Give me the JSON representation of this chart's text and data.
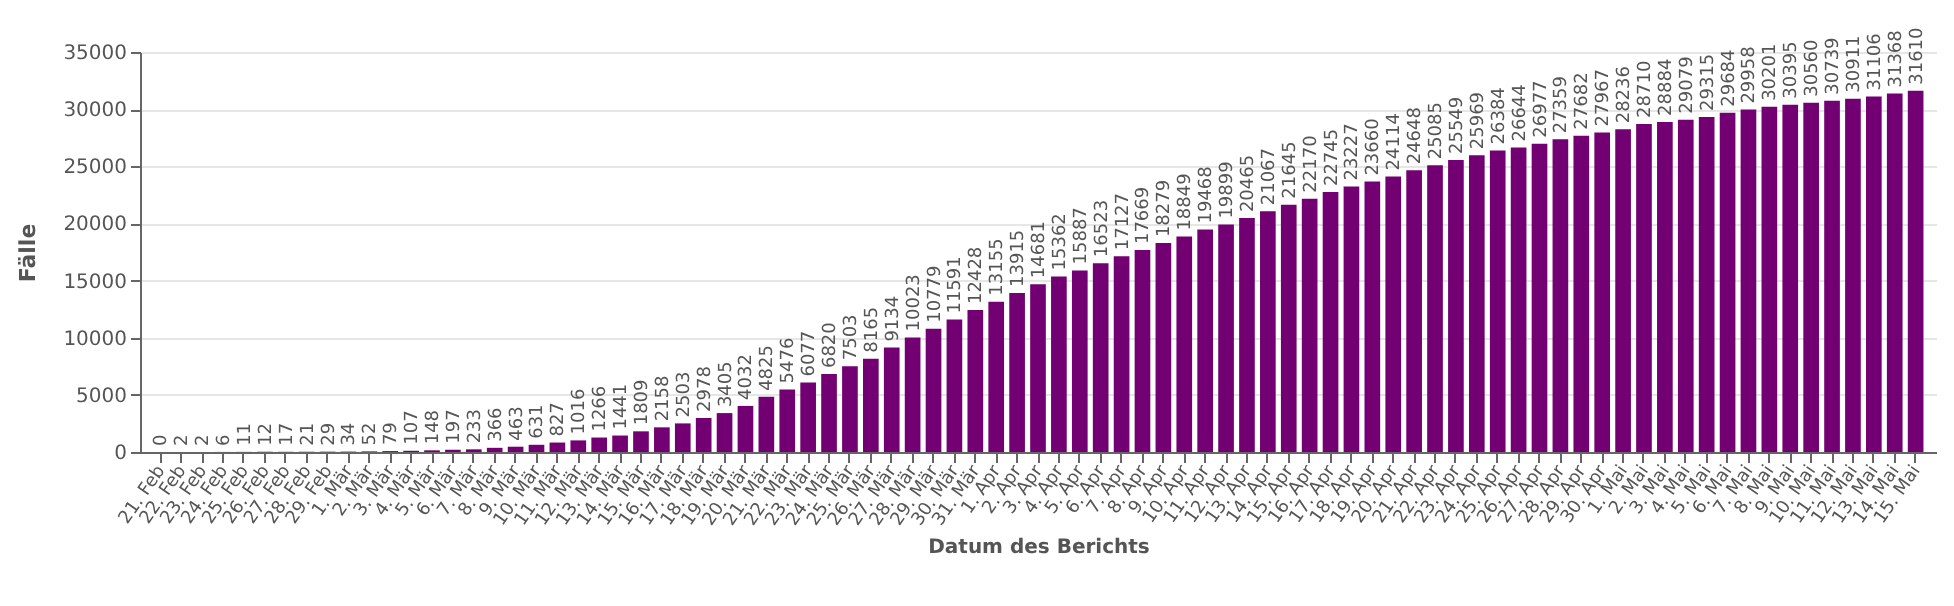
{
  "chart_data": {
    "type": "bar",
    "xlabel": "Datum des Berichts",
    "ylabel": "Fälle",
    "categories": [
      "21. Feb",
      "22. Feb",
      "23. Feb",
      "24. Feb",
      "25. Feb",
      "26. Feb",
      "27. Feb",
      "28. Feb",
      "29. Feb",
      "1. Mär",
      "2. Mär",
      "3. Mär",
      "4. Mär",
      "5. Mär",
      "6. Mär",
      "7. Mär",
      "8. Mär",
      "9. Mär",
      "10. Mär",
      "11. Mär",
      "12. Mär",
      "13. Mär",
      "14. Mär",
      "15. Mär",
      "16. Mär",
      "17. Mär",
      "18. Mär",
      "19. Mär",
      "20. Mär",
      "21. Mär",
      "22. Mär",
      "23. Mär",
      "24. Mär",
      "25. Mär",
      "26. Mär",
      "27. Mär",
      "28. Mär",
      "29. Mär",
      "30. Mär",
      "31. Mär",
      "1. Apr",
      "2. Apr",
      "3. Apr",
      "4. Apr",
      "5. Apr",
      "6. Apr",
      "7. Apr",
      "8. Apr",
      "9. Apr",
      "10. Apr",
      "11. Apr",
      "12. Apr",
      "13. Apr",
      "14. Apr",
      "15. Apr",
      "16. Apr",
      "17. Apr",
      "18. Apr",
      "19. Apr",
      "20. Apr",
      "21. Apr",
      "22. Apr",
      "23. Apr",
      "24. Apr",
      "25. Apr",
      "26. Apr",
      "27. Apr",
      "28. Apr",
      "29. Apr",
      "30. Apr",
      "1. Mai",
      "2. Mai",
      "3. Mai",
      "4. Mai",
      "5. Mai",
      "6. Mai",
      "7. Mai",
      "8. Mai",
      "9. Mai",
      "10. Mai",
      "11. Mai",
      "12. Mai",
      "13. Mai",
      "14. Mai",
      "15. Mai"
    ],
    "values": [
      0,
      2,
      2,
      6,
      11,
      12,
      17,
      21,
      29,
      34,
      52,
      79,
      107,
      148,
      197,
      233,
      366,
      463,
      631,
      827,
      1016,
      1266,
      1441,
      1809,
      2158,
      2503,
      2978,
      3405,
      4032,
      4825,
      5476,
      6077,
      6820,
      7503,
      8165,
      9134,
      10023,
      10779,
      11591,
      12428,
      13155,
      13915,
      14681,
      15362,
      15887,
      16523,
      17127,
      17669,
      18279,
      18849,
      19468,
      19899,
      20465,
      21067,
      21645,
      22170,
      22745,
      23227,
      23660,
      24114,
      24648,
      25085,
      25549,
      25969,
      26384,
      26644,
      26977,
      27359,
      27682,
      27967,
      28236,
      28710,
      28884,
      29079,
      29315,
      29684,
      29958,
      30201,
      30395,
      30560,
      30739,
      30911,
      31106,
      31368,
      31610
    ],
    "color": "#730073",
    "ylim": [
      0,
      35000
    ],
    "yticks": [
      0,
      5000,
      10000,
      15000,
      20000,
      25000,
      30000,
      35000
    ],
    "grid": "y",
    "data_labels": true
  }
}
